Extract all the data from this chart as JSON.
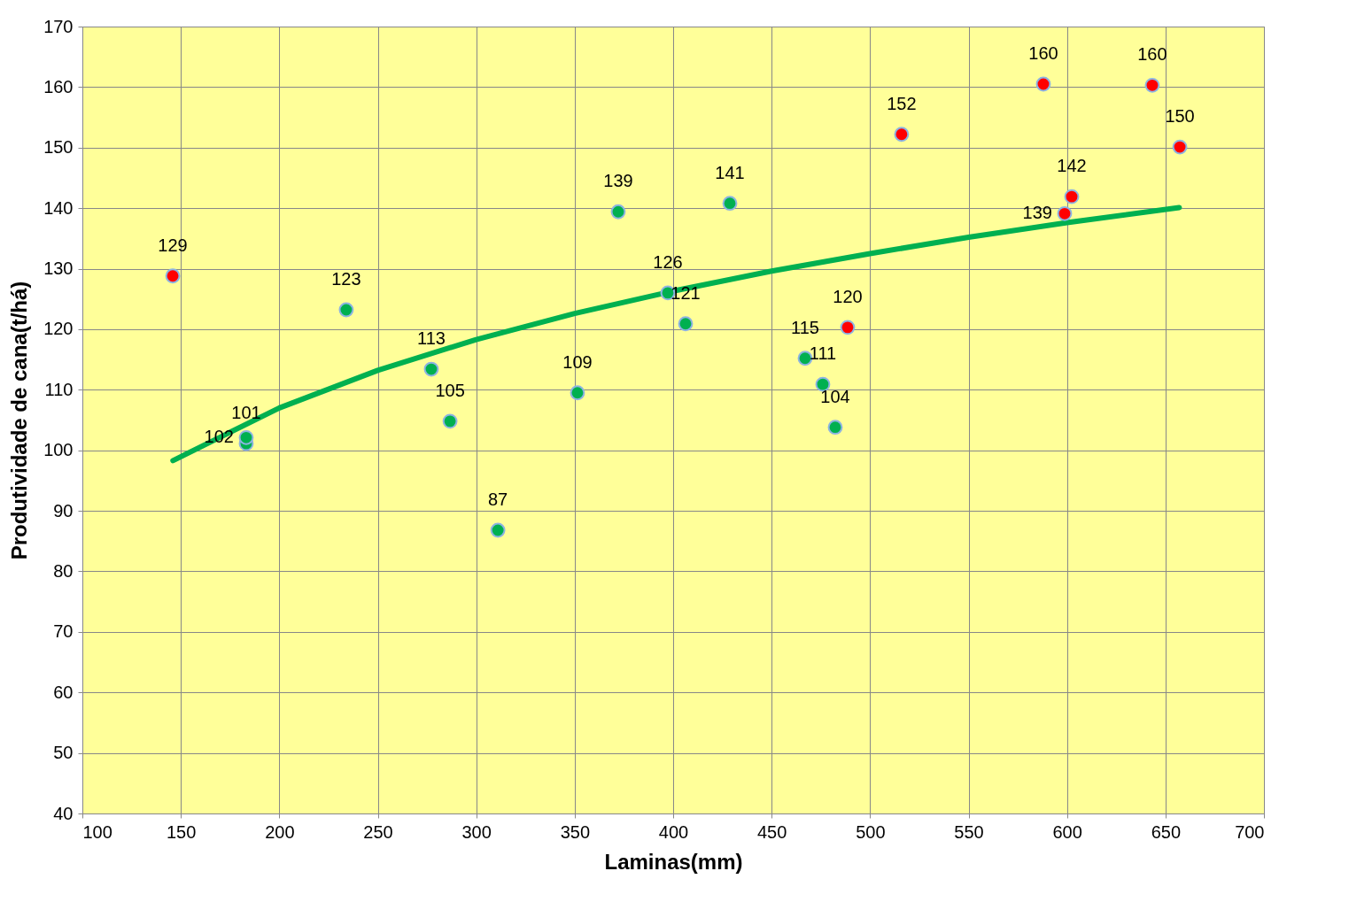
{
  "chart_data": {
    "type": "scatter",
    "xlabel": "Laminas(mm)",
    "ylabel": "Produtividade de cana(t/há)",
    "xlim": [
      100,
      700
    ],
    "ylim": [
      40,
      170
    ],
    "xticks": [
      100,
      150,
      200,
      250,
      300,
      350,
      400,
      450,
      500,
      550,
      600,
      650,
      700
    ],
    "yticks": [
      40,
      50,
      60,
      70,
      80,
      90,
      100,
      110,
      120,
      130,
      140,
      150,
      160,
      170
    ],
    "grid": true,
    "marker": "circle",
    "series": [
      {
        "color": "#00b050",
        "x": [
          183.2,
          183.2,
          234,
          277.2,
          286.7,
          311,
          351.4,
          372.1,
          397.3,
          406.3,
          428.8,
          467,
          476,
          482.3
        ],
        "values": [
          101.1,
          102.1,
          123.2,
          113.4,
          104.8,
          86.8,
          109.5,
          139.4,
          126,
          120.9,
          140.8,
          115.2,
          110.9,
          103.8
        ],
        "value_labels": [
          "101",
          "102",
          "123",
          "113",
          "105",
          "87",
          "109",
          "139",
          "126",
          "121",
          "141",
          "115",
          "111",
          "104"
        ]
      },
      {
        "color": "#ff0000",
        "x": [
          145.9,
          488.6,
          516,
          588,
          643.3,
          657.3,
          602.4,
          598.8
        ],
        "values": [
          128.8,
          120.3,
          152.2,
          160.5,
          160.3,
          150.1,
          141.9,
          139.1
        ],
        "value_labels": [
          "129",
          "120",
          "152",
          "160",
          "160",
          "150",
          "142",
          "139"
        ]
      },
      {
        "type": "line",
        "marker": "none",
        "color": "#00b050",
        "x": [
          146,
          200,
          250,
          300,
          350,
          400,
          450,
          500,
          550,
          600,
          657
        ],
        "values": [
          98.3,
          107.0,
          113.2,
          118.3,
          122.6,
          126.3,
          129.6,
          132.5,
          135.2,
          137.6,
          140.1
        ]
      }
    ]
  }
}
